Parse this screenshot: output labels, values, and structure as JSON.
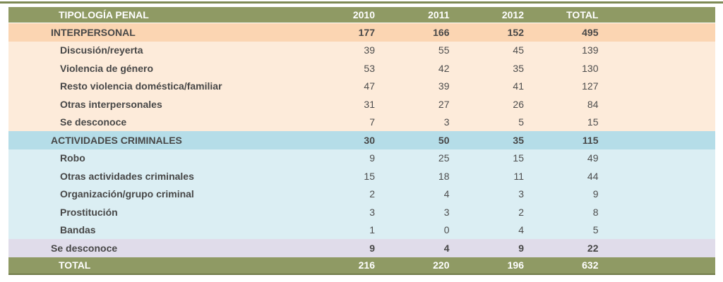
{
  "header": {
    "title": "TIPOLOGÍA PENAL",
    "columns": [
      "2010",
      "2011",
      "2012",
      "TOTAL"
    ]
  },
  "rows": [
    {
      "kind": "section",
      "label": "INTERPERSONAL",
      "values": [
        "177",
        "166",
        "152",
        "495"
      ]
    },
    {
      "kind": "sub",
      "label": "Discusión/reyerta",
      "values": [
        "39",
        "55",
        "45",
        "139"
      ]
    },
    {
      "kind": "sub",
      "label": "Violencia de género",
      "values": [
        "53",
        "42",
        "35",
        "130"
      ]
    },
    {
      "kind": "sub",
      "label": "Resto violencia doméstica/familiar",
      "values": [
        "47",
        "39",
        "41",
        "127"
      ]
    },
    {
      "kind": "sub",
      "label": "Otras interpersonales",
      "values": [
        "31",
        "27",
        "26",
        "84"
      ]
    },
    {
      "kind": "sub",
      "label": "Se desconoce",
      "values": [
        "7",
        "3",
        "5",
        "15"
      ]
    },
    {
      "kind": "section",
      "label": "ACTIVIDADES CRIMINALES",
      "values": [
        "30",
        "50",
        "35",
        "115"
      ]
    },
    {
      "kind": "sub",
      "label": "Robo",
      "values": [
        "9",
        "25",
        "15",
        "49"
      ]
    },
    {
      "kind": "sub",
      "label": "Otras actividades criminales",
      "values": [
        "15",
        "18",
        "11",
        "44"
      ]
    },
    {
      "kind": "sub",
      "label": "Organización/grupo criminal",
      "values": [
        "2",
        "4",
        "3",
        "9"
      ]
    },
    {
      "kind": "sub",
      "label": "Prostitución",
      "values": [
        "3",
        "3",
        "2",
        "8"
      ]
    },
    {
      "kind": "sub",
      "label": "Bandas",
      "values": [
        "1",
        "0",
        "4",
        "5"
      ]
    },
    {
      "kind": "section",
      "label": "Se desconoce",
      "values": [
        "9",
        "4",
        "9",
        "22"
      ]
    }
  ],
  "total": {
    "label": "TOTAL",
    "values": [
      "216",
      "220",
      "196",
      "632"
    ]
  },
  "colors": {
    "olive_header": "#8F9A64",
    "olive_border_bottom": "#707B49",
    "top_rule": "#7E8A55",
    "orange_section": "#FBD5B2",
    "orange_sub": "#FDEBDA",
    "aqua_section": "#B5DDE8",
    "aqua_sub": "#DBEEF3",
    "lavender_section": "#E0DCEA",
    "text_dark": "#474747",
    "text_header": "#FFFFFF"
  }
}
